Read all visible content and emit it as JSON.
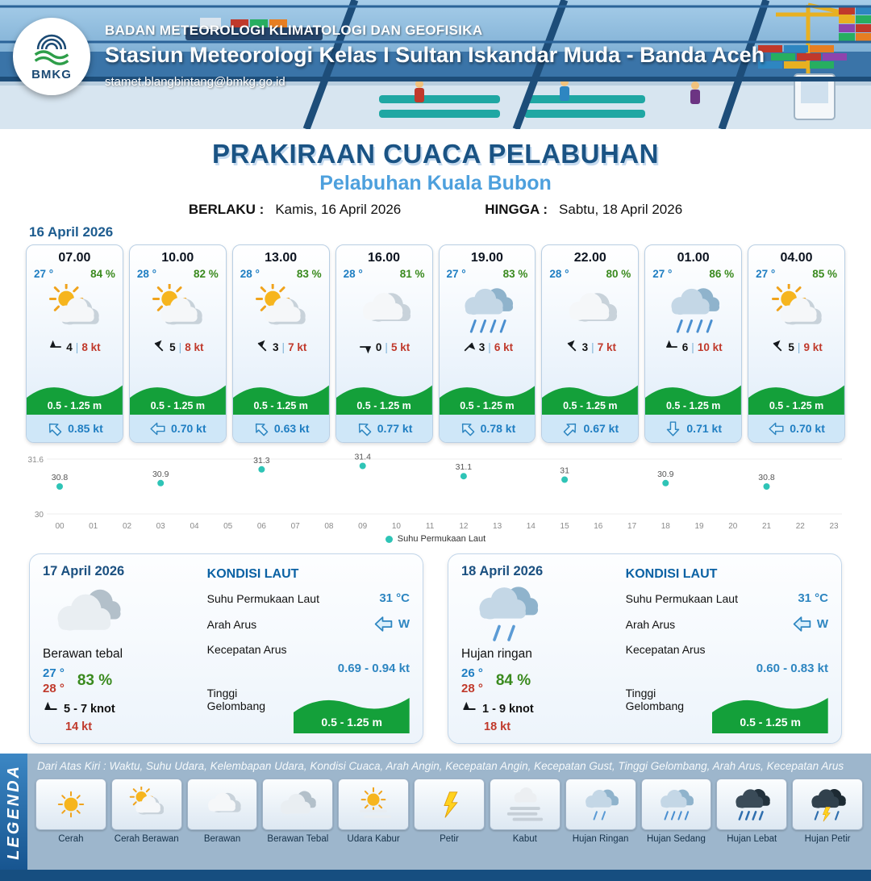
{
  "header": {
    "agency": "BADAN METEOROLOGI KLIMATOLOGI DAN GEOFISIKA",
    "station": "Stasiun Meteorologi Kelas I Sultan Iskandar Muda - Banda Aceh",
    "email": "stamet.blangbintang@bmkg.go.id",
    "logo_text": "BMKG"
  },
  "title": {
    "main": "PRAKIRAAN CUACA PELABUHAN",
    "subtitle": "Pelabuhan Kuala Bubon",
    "berlaku_label": "BERLAKU :",
    "berlaku_value": "Kamis, 16 April 2026",
    "hingga_label": "HINGGA :",
    "hingga_value": "Sabtu, 18 April 2026"
  },
  "forecast_date": "16 April 2026",
  "ui": {
    "wind_sep": "|"
  },
  "colors": {
    "title_navy": "#1a5384",
    "subtitle_blue": "#4da0dd",
    "temp_blue": "#1f7ec2",
    "humidity_green": "#3a8a1e",
    "gust_red": "#c0392b",
    "wave_green": "#14a03a",
    "current_blue": "#2e86c1",
    "sst_point_teal": "#2ec4b6"
  },
  "hourly": [
    {
      "time": "07.00",
      "temp": "27 °",
      "rh": "84 %",
      "icon": "partly-cloudy",
      "wind": "4",
      "gust": "8 kt",
      "wind_rot": -90,
      "wave": "0.5 - 1.25 m",
      "current": "0.85 kt",
      "cur_rot": -45
    },
    {
      "time": "10.00",
      "temp": "28 °",
      "rh": "82 %",
      "icon": "partly-cloudy",
      "wind": "5",
      "gust": "8 kt",
      "wind_rot": -45,
      "wave": "0.5 - 1.25 m",
      "current": "0.70 kt",
      "cur_rot": -90
    },
    {
      "time": "13.00",
      "temp": "28 °",
      "rh": "83 %",
      "icon": "partly-cloudy",
      "wind": "3",
      "gust": "7 kt",
      "wind_rot": -45,
      "wave": "0.5 - 1.25 m",
      "current": "0.63 kt",
      "cur_rot": -45
    },
    {
      "time": "16.00",
      "temp": "28 °",
      "rh": "81 %",
      "icon": "cloudy",
      "wind": "0",
      "gust": "5 kt",
      "wind_rot": 90,
      "wave": "0.5 - 1.25 m",
      "current": "0.77 kt",
      "cur_rot": -45
    },
    {
      "time": "19.00",
      "temp": "27 °",
      "rh": "83 %",
      "icon": "rain",
      "wind": "3",
      "gust": "6 kt",
      "wind_rot": 45,
      "wave": "0.5 - 1.25 m",
      "current": "0.78 kt",
      "cur_rot": -45
    },
    {
      "time": "22.00",
      "temp": "28 °",
      "rh": "80 %",
      "icon": "cloudy",
      "wind": "3",
      "gust": "7 kt",
      "wind_rot": -45,
      "wave": "0.5 - 1.25 m",
      "current": "0.67 kt",
      "cur_rot": 45
    },
    {
      "time": "01.00",
      "temp": "27 °",
      "rh": "86 %",
      "icon": "rain",
      "wind": "6",
      "gust": "10 kt",
      "wind_rot": -90,
      "wave": "0.5 - 1.25 m",
      "current": "0.71 kt",
      "cur_rot": 180
    },
    {
      "time": "04.00",
      "temp": "27 °",
      "rh": "85 %",
      "icon": "partly-cloudy",
      "wind": "5",
      "gust": "9 kt",
      "wind_rot": -45,
      "wave": "0.5 - 1.25 m",
      "current": "0.70 kt",
      "cur_rot": -90
    }
  ],
  "chart_data": {
    "type": "scatter",
    "series_name": "Suhu Permukaan Laut",
    "x": [
      0,
      3,
      6,
      9,
      12,
      15,
      18,
      21
    ],
    "values": [
      30.8,
      30.9,
      31.3,
      31.4,
      31.1,
      31.0,
      30.9,
      30.8
    ],
    "ylim": [
      30,
      31.6
    ],
    "y_ticks": [
      "31.6",
      "30"
    ],
    "x_ticks": [
      "00",
      "01",
      "02",
      "03",
      "04",
      "05",
      "06",
      "07",
      "08",
      "09",
      "10",
      "11",
      "12",
      "13",
      "14",
      "15",
      "16",
      "17",
      "18",
      "19",
      "20",
      "21",
      "22",
      "23"
    ],
    "point_color": "#2ec4b6",
    "grid": true,
    "legend_position": "bottom"
  },
  "daily": [
    {
      "date": "17 April 2026",
      "icon": "clouds",
      "condition": "Berawan tebal",
      "temp_min": "27 °",
      "temp_max": "28 °",
      "rh": "83 %",
      "wind_rot": -90,
      "wind_range": "5  - 7 knot",
      "gust": "14 kt",
      "sea_title": "KONDISI LAUT",
      "sst_label": "Suhu Permukaan Laut",
      "sst": "31 °C",
      "dir_label": "Arah Arus",
      "dir": "W",
      "dir_rot": -90,
      "speed_label": "Kecepatan Arus",
      "speed": "0.69  - 0.94 kt",
      "wave_label": "Tinggi Gelombang",
      "wave": "0.5 - 1.25 m"
    },
    {
      "date": "18 April 2026",
      "icon": "rain-light",
      "condition": "Hujan ringan",
      "temp_min": "26 °",
      "temp_max": "28 °",
      "rh": "84 %",
      "wind_rot": -90,
      "wind_range": "1  - 9 knot",
      "gust": "18 kt",
      "sea_title": "KONDISI LAUT",
      "sst_label": "Suhu Permukaan Laut",
      "sst": "31 °C",
      "dir_label": "Arah Arus",
      "dir": "W",
      "dir_rot": -90,
      "speed_label": "Kecepatan Arus",
      "speed": "0.60  - 0.83 kt",
      "wave_label": "Tinggi Gelombang",
      "wave": "0.5 - 1.25 m"
    }
  ],
  "legend": {
    "strip_label": "LEGENDA",
    "description": "Dari Atas Kiri : Waktu, Suhu Udara, Kelembapan Udara, Kondisi Cuaca, Arah Angin, Kecepatan Angin, Kecepatan Gust, Tinggi Gelombang, Arah Arus, Kecepatan Arus",
    "items": [
      {
        "label": "Cerah",
        "icon": "sun"
      },
      {
        "label": "Cerah Berawan",
        "icon": "partly-cloudy"
      },
      {
        "label": "Berawan",
        "icon": "cloudy"
      },
      {
        "label": "Berawan Tebal",
        "icon": "clouds"
      },
      {
        "label": "Udara Kabur",
        "icon": "haze"
      },
      {
        "label": "Petir",
        "icon": "lightning"
      },
      {
        "label": "Kabut",
        "icon": "fog"
      },
      {
        "label": "Hujan Ringan",
        "icon": "rain-light"
      },
      {
        "label": "Hujan Sedang",
        "icon": "rain"
      },
      {
        "label": "Hujan Lebat",
        "icon": "rain-heavy"
      },
      {
        "label": "Hujan Petir",
        "icon": "thunderstorm"
      }
    ]
  }
}
